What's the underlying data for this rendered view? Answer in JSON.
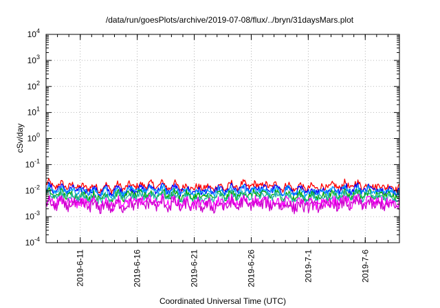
{
  "chart_data": {
    "type": "line",
    "title": "/data/run/goesPlots/archive/2019-07-08/flux/../bryn/31daysMars.plot",
    "xlabel": "Coordinated Universal Time (UTC)",
    "ylabel": "cSv/day",
    "yscale": "log",
    "ylim": [
      0.0001,
      10000
    ],
    "xlim": [
      "2019-06-08",
      "2019-07-09"
    ],
    "grid": true,
    "y_ticks": [
      {
        "mant": "10",
        "exp": "-4"
      },
      {
        "mant": "10",
        "exp": "-3"
      },
      {
        "mant": "10",
        "exp": "-2"
      },
      {
        "mant": "10",
        "exp": "-1"
      },
      {
        "mant": "10",
        "exp": "0"
      },
      {
        "mant": "10",
        "exp": "1"
      },
      {
        "mant": "10",
        "exp": "2"
      },
      {
        "mant": "10",
        "exp": "3"
      },
      {
        "mant": "10",
        "exp": "4"
      }
    ],
    "x_ticks": [
      "2019-6-11",
      "2019-6-16",
      "2019-6-21",
      "2019-6-26",
      "2019-7-1",
      "2019-7-6"
    ],
    "series": [
      {
        "color": "#ff0000",
        "level": 0.0145,
        "jitter": 0.13
      },
      {
        "color": "#0000ff",
        "level": 0.0108,
        "jitter": 0.13
      },
      {
        "color": "#00a0ff",
        "level": 0.0095,
        "jitter": 0.12
      },
      {
        "color": "#00aa00",
        "level": 0.0066,
        "jitter": 0.14
      },
      {
        "color": "#20b2aa",
        "level": 0.0058,
        "jitter": 0.14
      },
      {
        "color": "#ff00ff",
        "level": 0.0035,
        "jitter": 0.2
      },
      {
        "color": "#cc00cc",
        "level": 0.0028,
        "jitter": 0.22
      }
    ]
  }
}
